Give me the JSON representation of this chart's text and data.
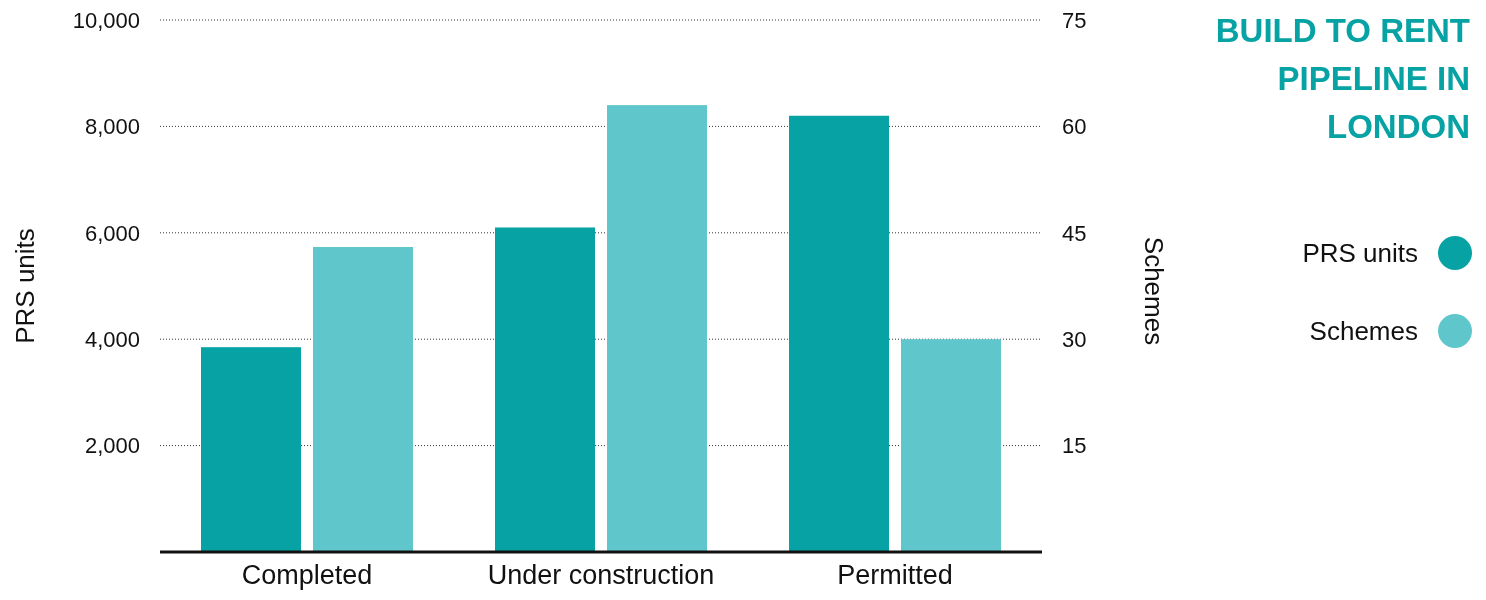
{
  "chart_data": {
    "type": "bar",
    "title": "BUILD TO RENT PIPELINE IN LONDON",
    "ylabel": "PRS units",
    "y2label": "Schemes",
    "categories": [
      "Completed",
      "Under construction",
      "Permitted"
    ],
    "series": [
      {
        "name": "PRS units",
        "color": "#07a3a4",
        "values": [
          3850,
          6100,
          8200
        ]
      },
      {
        "name": "Schemes",
        "color": "#5fc7cb",
        "values": [
          43,
          63,
          30
        ],
        "axis": "y2"
      }
    ],
    "ylim": [
      0,
      10000
    ],
    "yticks": [
      {
        "value": 2000,
        "label": "2,000"
      },
      {
        "value": 4000,
        "label": "4,000"
      },
      {
        "value": 6000,
        "label": "6,000"
      },
      {
        "value": 8000,
        "label": "8,000"
      },
      {
        "value": 10000,
        "label": "10,000"
      }
    ],
    "y2lim": [
      0,
      75
    ],
    "y2ticks": [
      15,
      30,
      45,
      60,
      75
    ],
    "grid": "y",
    "legend": "right"
  }
}
